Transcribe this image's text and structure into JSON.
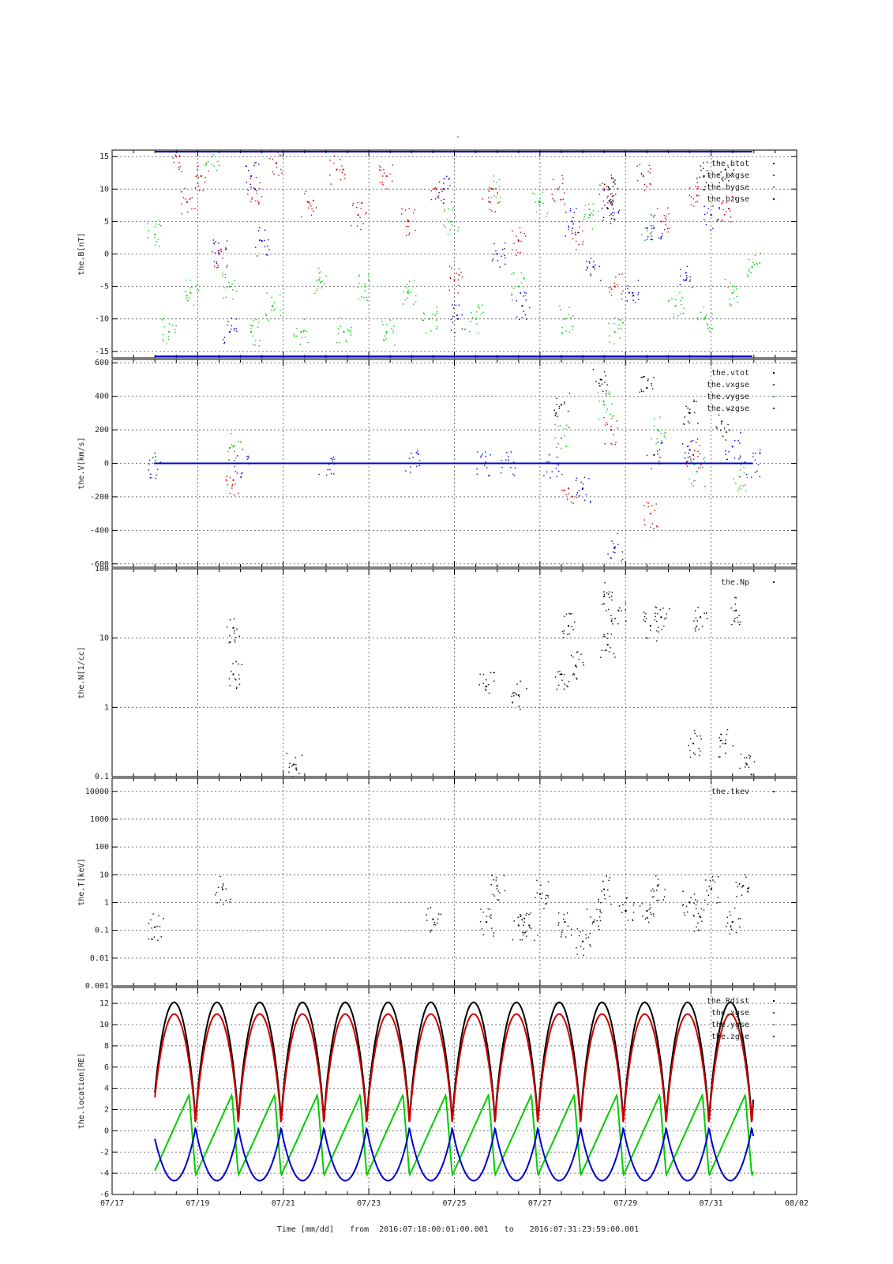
{
  "title": "-",
  "footer": {
    "time_label": "Time [mm/dd]",
    "from_label": "from",
    "from_value": "2016:07:18:00:01:00.001",
    "to_label": "to",
    "to_value": "2016:07:31:23:59:00.001"
  },
  "colors": {
    "black": "#000000",
    "red": "#cc0000",
    "green": "#00cc00",
    "blue": "#0000cc",
    "grid": "#555555"
  },
  "chart_data": [
    {
      "type": "scatter",
      "ylabel": "the.B[nT]",
      "xlim": [
        "07/17",
        "08/02"
      ],
      "ylim": [
        -16,
        16
      ],
      "yscale": "linear",
      "yticks": [
        15,
        10,
        5,
        0,
        -5,
        -10,
        -15
      ],
      "ytick_labels": [
        "15",
        "10",
        "5",
        "0",
        "-5",
        "-10",
        "-15"
      ],
      "x_gridlines": [
        "07/19",
        "07/21",
        "07/23",
        "07/25",
        "07/27",
        "07/29",
        "07/31"
      ],
      "grid": true,
      "legend_position": "top-right",
      "series": [
        {
          "name": "the.btot",
          "color": "black",
          "points": [
            [
              "07/28 14:00",
              7
            ],
            [
              "07/28 15:00",
              10
            ],
            [
              "07/30 20:00",
              12
            ],
            [
              "07/31 08:00",
              13
            ]
          ]
        },
        {
          "name": "the.bxgse",
          "color": "red",
          "points": [
            [
              "07/18 12:00",
              15
            ],
            [
              "07/18 18:00",
              8
            ],
            [
              "07/19 02:00",
              12
            ],
            [
              "07/19 12:00",
              0
            ],
            [
              "07/20 08:00",
              10
            ],
            [
              "07/20 20:00",
              14
            ],
            [
              "07/21 14:00",
              8
            ],
            [
              "07/22 06:00",
              13
            ],
            [
              "07/22 18:00",
              6
            ],
            [
              "07/23 10:00",
              12
            ],
            [
              "07/23 22:00",
              5
            ],
            [
              "07/24 14:00",
              10
            ],
            [
              "07/25 00:00",
              -4
            ],
            [
              "07/25 20:00",
              8
            ],
            [
              "07/26 12:00",
              2
            ],
            [
              "07/27 10:00",
              10
            ],
            [
              "07/27 20:00",
              3
            ],
            [
              "07/28 12:00",
              10
            ],
            [
              "07/28 18:00",
              -5
            ],
            [
              "07/29 10:00",
              12
            ],
            [
              "07/29 20:00",
              5
            ],
            [
              "07/30 16:00",
              9
            ],
            [
              "07/31 10:00",
              7
            ]
          ]
        },
        {
          "name": "the.bygse",
          "color": "green",
          "points": [
            [
              "07/18 00:00",
              3
            ],
            [
              "07/18 08:00",
              -12
            ],
            [
              "07/18 20:00",
              -6
            ],
            [
              "07/19 08:00",
              15
            ],
            [
              "07/19 18:00",
              -5
            ],
            [
              "07/20 06:00",
              -12
            ],
            [
              "07/20 18:00",
              -8
            ],
            [
              "07/21 10:00",
              -12
            ],
            [
              "07/21 20:00",
              -4
            ],
            [
              "07/22 10:00",
              -12
            ],
            [
              "07/22 22:00",
              -5
            ],
            [
              "07/23 10:00",
              -12
            ],
            [
              "07/23 22:00",
              -6
            ],
            [
              "07/24 10:00",
              -10
            ],
            [
              "07/24 22:00",
              5
            ],
            [
              "07/25 12:00",
              -10
            ],
            [
              "07/25 22:00",
              10
            ],
            [
              "07/26 12:00",
              -5
            ],
            [
              "07/27 00:00",
              8
            ],
            [
              "07/27 14:00",
              -10
            ],
            [
              "07/28 04:00",
              6
            ],
            [
              "07/28 18:00",
              -12
            ],
            [
              "07/29 12:00",
              4
            ],
            [
              "07/30 04:00",
              -8
            ],
            [
              "07/30 20:00",
              -10
            ],
            [
              "07/31 12:00",
              -6
            ],
            [
              "07/31 23:00",
              -2
            ]
          ]
        },
        {
          "name": "the.bzgse",
          "color": "blue",
          "points": [
            [
              "07/19 12:00",
              0
            ],
            [
              "07/19 18:00",
              -12
            ],
            [
              "07/20 06:00",
              12
            ],
            [
              "07/20 12:00",
              2
            ],
            [
              "07/24 18:00",
              10
            ],
            [
              "07/25 02:00",
              -10
            ],
            [
              "07/26 00:00",
              0
            ],
            [
              "07/26 14:00",
              -8
            ],
            [
              "07/27 18:00",
              5
            ],
            [
              "07/28 06:00",
              -2
            ],
            [
              "07/28 16:00",
              8
            ],
            [
              "07/29 04:00",
              -6
            ],
            [
              "07/29 16:00",
              4
            ],
            [
              "07/30 10:00",
              -4
            ],
            [
              "07/31 00:00",
              6
            ]
          ]
        }
      ]
    },
    {
      "type": "scatter",
      "ylabel": "the.V[km/s]",
      "xlim": [
        "07/17",
        "08/02"
      ],
      "ylim": [
        -620,
        620
      ],
      "yscale": "linear",
      "yticks": [
        600,
        400,
        200,
        0,
        -200,
        -400,
        -600
      ],
      "ytick_labels": [
        "600",
        "400",
        "200",
        "0",
        "-200",
        "-400",
        "-600"
      ],
      "x_gridlines": [
        "07/19",
        "07/21",
        "07/23",
        "07/25",
        "07/27",
        "07/29",
        "07/31"
      ],
      "grid": true,
      "legend_position": "top-right",
      "series": [
        {
          "name": "the.vtot",
          "color": "black",
          "points": [
            [
              "07/27 12:00",
              350
            ],
            [
              "07/28 10:00",
              500
            ],
            [
              "07/29 12:00",
              450
            ],
            [
              "07/30 12:00",
              300
            ],
            [
              "07/31 06:00",
              250
            ]
          ]
        },
        {
          "name": "the.vxgse",
          "color": "red",
          "points": [
            [
              "07/19 20:00",
              -100
            ],
            [
              "07/27 16:00",
              -150
            ],
            [
              "07/28 16:00",
              200
            ],
            [
              "07/29 14:00",
              -300
            ],
            [
              "07/30 14:00",
              50
            ]
          ]
        },
        {
          "name": "the.vygse",
          "color": "green",
          "points": [
            [
              "07/19 20:00",
              100
            ],
            [
              "07/27 12:00",
              150
            ],
            [
              "07/28 12:00",
              350
            ],
            [
              "07/29 18:00",
              200
            ],
            [
              "07/30 16:00",
              -50
            ],
            [
              "07/31 16:00",
              -80
            ]
          ]
        },
        {
          "name": "the.vzgse",
          "color": "blue",
          "points": [
            [
              "07/18 00:00",
              0
            ],
            [
              "07/20 00:00",
              0
            ],
            [
              "07/22 00:00",
              0
            ],
            [
              "07/24 00:00",
              0
            ],
            [
              "07/25 16:00",
              0
            ],
            [
              "07/26 06:00",
              0
            ],
            [
              "07/27 06:00",
              0
            ],
            [
              "07/28 00:00",
              -150
            ],
            [
              "07/28 18:00",
              -500
            ],
            [
              "07/29 16:00",
              50
            ],
            [
              "07/30 12:00",
              80
            ],
            [
              "07/31 12:00",
              100
            ],
            [
              "07/31 23:00",
              0
            ]
          ]
        }
      ]
    },
    {
      "type": "scatter",
      "ylabel": "the.N[1/cc]",
      "xlim": [
        "07/17",
        "08/02"
      ],
      "ylim": [
        0.1,
        100
      ],
      "yscale": "log",
      "yticks": [
        100,
        10,
        1,
        0.1
      ],
      "ytick_labels": [
        "100",
        "10",
        "1",
        "0.1"
      ],
      "x_gridlines": [
        "07/19",
        "07/21",
        "07/23",
        "07/25",
        "07/27",
        "07/29",
        "07/31"
      ],
      "grid": true,
      "legend_position": "top-right",
      "series": [
        {
          "name": "the.Np",
          "color": "black",
          "points": [
            [
              "07/19 20:00",
              14
            ],
            [
              "07/19 20:00",
              3
            ],
            [
              "07/21 06:00",
              0.15
            ],
            [
              "07/25 18:00",
              2
            ],
            [
              "07/26 12:00",
              1.5
            ],
            [
              "07/27 12:00",
              3
            ],
            [
              "07/27 16:00",
              15
            ],
            [
              "07/27 20:00",
              4
            ],
            [
              "07/28 12:00",
              40
            ],
            [
              "07/28 14:00",
              8
            ],
            [
              "07/28 20:00",
              25
            ],
            [
              "07/29 14:00",
              15
            ],
            [
              "07/29 20:00",
              20
            ],
            [
              "07/30 14:00",
              0.3
            ],
            [
              "07/30 18:00",
              20
            ],
            [
              "07/31 08:00",
              0.3
            ],
            [
              "07/31 14:00",
              25
            ],
            [
              "07/31 20:00",
              0.15
            ]
          ]
        }
      ]
    },
    {
      "type": "scatter",
      "ylabel": "the.T[keV]",
      "xlim": [
        "07/17",
        "08/02"
      ],
      "ylim": [
        0.001,
        30000
      ],
      "yscale": "log",
      "yticks": [
        10000,
        1000,
        100,
        10,
        1,
        0.1,
        0.01,
        0.001
      ],
      "ytick_labels": [
        "10000",
        "1000",
        "100",
        "10",
        "1",
        "0.1",
        "0.01",
        "0.001"
      ],
      "x_gridlines": [
        "07/19",
        "07/21",
        "07/23",
        "07/25",
        "07/27",
        "07/29",
        "07/31"
      ],
      "grid": true,
      "legend_position": "top-right",
      "series": [
        {
          "name": "the.tkev",
          "color": "black",
          "points": [
            [
              "07/18 00:00",
              0.13
            ],
            [
              "07/19 14:00",
              3
            ],
            [
              "07/24 12:00",
              0.25
            ],
            [
              "07/25 18:00",
              0.2
            ],
            [
              "07/26 00:00",
              4
            ],
            [
              "07/26 12:00",
              0.15
            ],
            [
              "07/26 18:00",
              0.15
            ],
            [
              "07/27 00:00",
              2
            ],
            [
              "07/27 14:00",
              0.2
            ],
            [
              "07/28 00:00",
              0.04
            ],
            [
              "07/28 06:00",
              0.2
            ],
            [
              "07/28 12:00",
              3
            ],
            [
              "07/29 00:00",
              0.5
            ],
            [
              "07/29 12:00",
              0.5
            ],
            [
              "07/29 18:00",
              4
            ],
            [
              "07/30 12:00",
              1
            ],
            [
              "07/30 18:00",
              0.3
            ],
            [
              "07/31 00:00",
              3
            ],
            [
              "07/31 12:00",
              0.2
            ],
            [
              "07/31 18:00",
              4
            ]
          ]
        }
      ]
    },
    {
      "type": "line",
      "ylabel": "the.location[RE]",
      "xlim": [
        "07/17",
        "08/02"
      ],
      "ylim": [
        -6,
        13.5
      ],
      "yscale": "linear",
      "yticks": [
        12,
        10,
        8,
        6,
        4,
        2,
        0,
        -2,
        -4,
        -6
      ],
      "ytick_labels": [
        "12",
        "10",
        "8",
        "6",
        "4",
        "2",
        "0",
        "-2",
        "-4",
        "-6"
      ],
      "xticks": [
        "07/17",
        "07/19",
        "07/21",
        "07/23",
        "07/25",
        "07/27",
        "07/29",
        "07/31",
        "08/02"
      ],
      "x_gridlines": [
        "07/19",
        "07/21",
        "07/23",
        "07/25",
        "07/27",
        "07/29",
        "07/31"
      ],
      "grid": true,
      "legend_position": "top-right",
      "orbit_period_hours": 24.0,
      "series": [
        {
          "name": "the.Rdist",
          "color": "black",
          "min": 0.4,
          "max": 12.1
        },
        {
          "name": "the.xgse",
          "color": "red",
          "min": 0.2,
          "max": 11.0
        },
        {
          "name": "the.ygse",
          "color": "green",
          "min": -4.2,
          "max": 3.4
        },
        {
          "name": "the.zgse",
          "color": "blue",
          "min": -4.7,
          "max": 0.4
        }
      ]
    }
  ]
}
